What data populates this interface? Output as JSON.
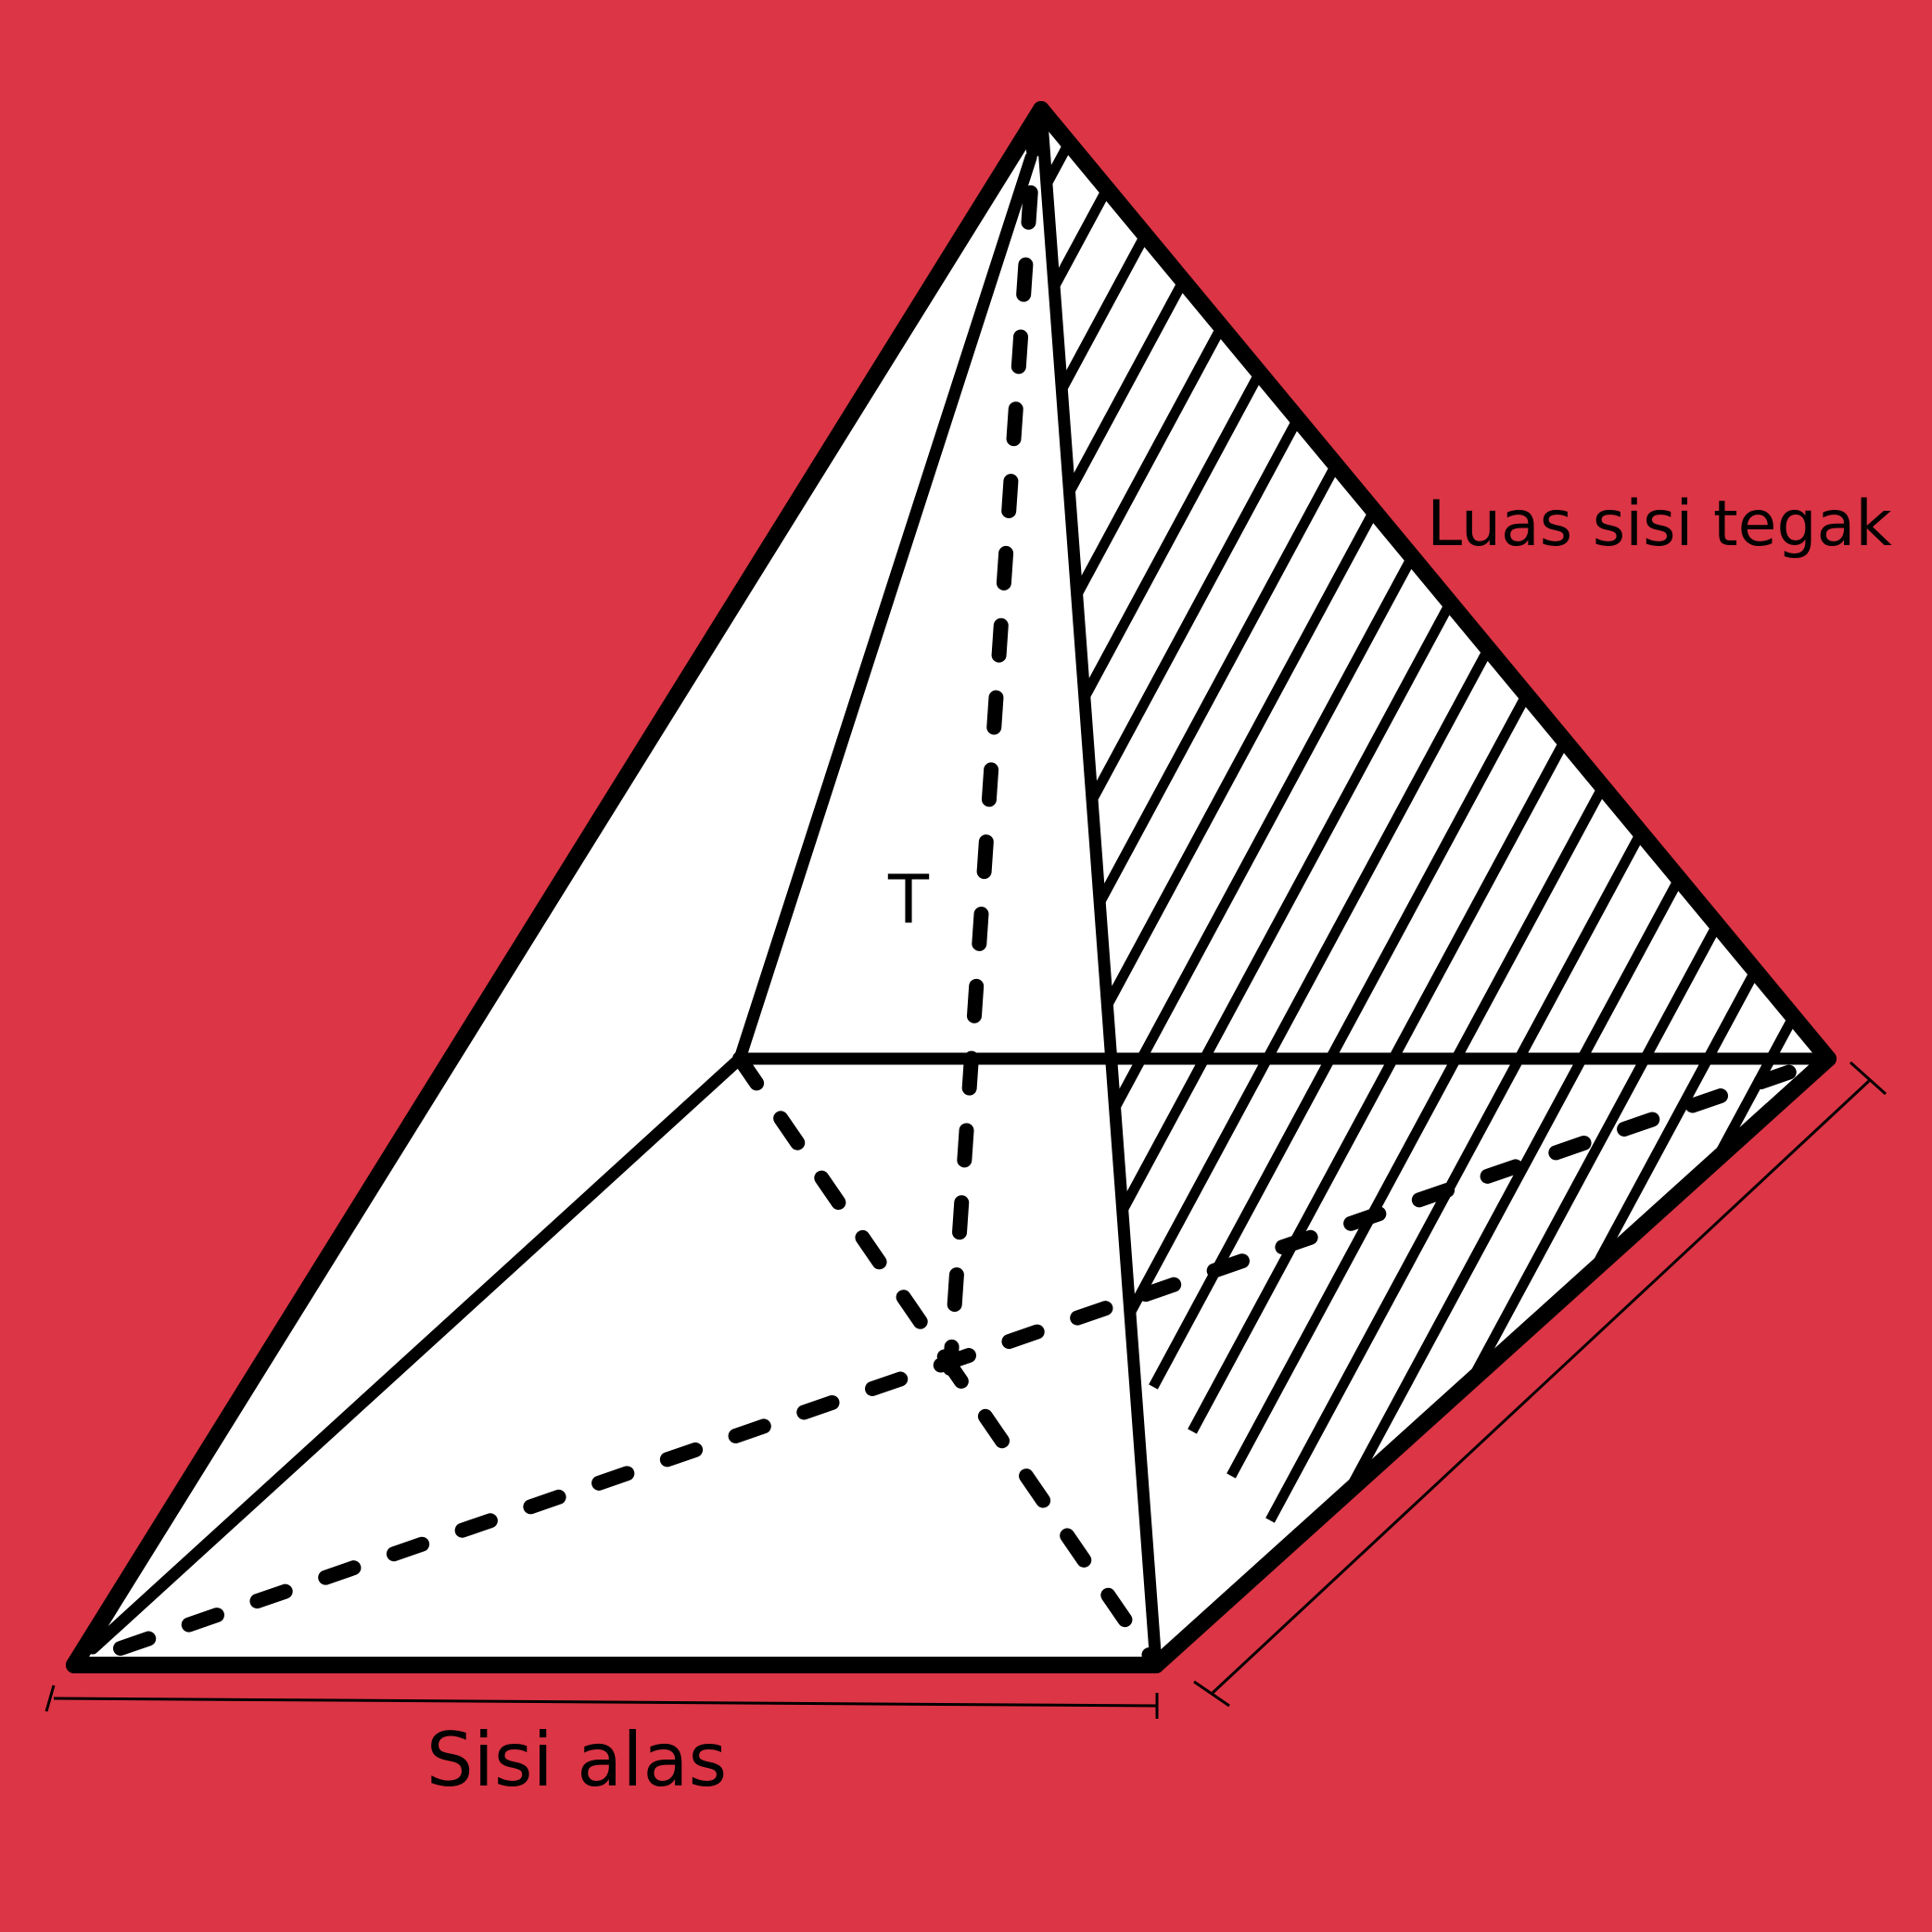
{
  "colors": {
    "background": "#DC3545",
    "face": "#FFFFFF",
    "ink": "#000000"
  },
  "labels": {
    "height": "T",
    "lateral_area": "Luas sisi tegak",
    "base_side": "Sisi alas"
  }
}
